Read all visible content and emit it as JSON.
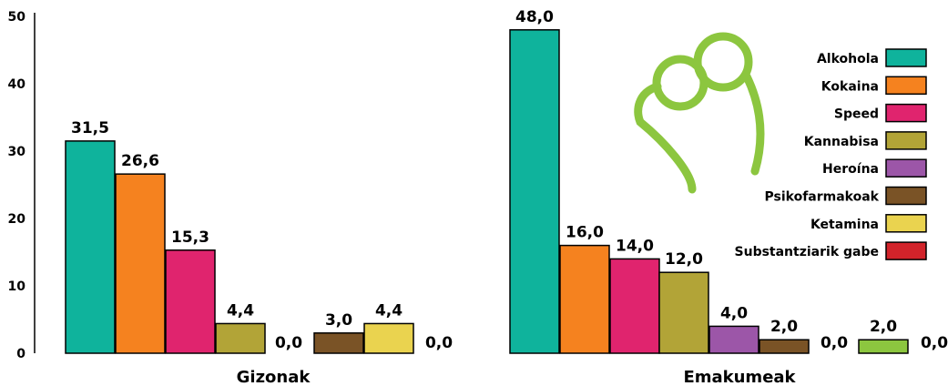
{
  "chart_data": {
    "type": "bar",
    "title": "",
    "xlabel": "",
    "ylabel": "",
    "ylim": [
      0,
      50
    ],
    "yticks": [
      "0",
      "10",
      "20",
      "30",
      "40",
      "50"
    ],
    "grid": false,
    "legend_position": "top-right",
    "groups": [
      "Gizonak",
      "Emakumeak"
    ],
    "series": [
      {
        "name": "Alkohola",
        "color": "#0fb39c",
        "values": [
          31.5,
          48.0
        ],
        "labels": [
          "31,5",
          "48,0"
        ]
      },
      {
        "name": "Kokaina",
        "color": "#f5821f",
        "values": [
          26.6,
          16.0
        ],
        "labels": [
          "26,6",
          "16,0"
        ]
      },
      {
        "name": "Speed",
        "color": "#e0246e",
        "values": [
          15.3,
          14.0
        ],
        "labels": [
          "15,3",
          "14,0"
        ]
      },
      {
        "name": "Kannabisa",
        "color": "#b2a437",
        "values": [
          4.4,
          12.0
        ],
        "labels": [
          "4,4",
          "12,0"
        ]
      },
      {
        "name": "Heroína",
        "color": "#9c56a8",
        "values": [
          0.0,
          4.0
        ],
        "labels": [
          "0,0",
          "4,0"
        ]
      },
      {
        "name": "Psikofarmakoak",
        "color": "#7a5326",
        "values": [
          3.0,
          2.0
        ],
        "labels": [
          "3,0",
          "2,0"
        ]
      },
      {
        "name": "Ketamina",
        "color": "#ead34f",
        "values": [
          4.4,
          0.0
        ],
        "labels": [
          "4,4",
          "0,0"
        ]
      },
      {
        "name": "Substantziarik gabe",
        "color": "#d2232a",
        "values": [
          0.0,
          0.0
        ],
        "labels": [
          "0,0",
          "0,0"
        ]
      }
    ],
    "extra_bars": [
      {
        "group": "Emakumeak",
        "after_series": "Ketamina",
        "color": "#8cc63f",
        "value": 2.0,
        "label": "2,0"
      }
    ]
  },
  "decoration": {
    "logo_color": "#8cc63f",
    "logo_icon": "glasses-logo-icon"
  }
}
